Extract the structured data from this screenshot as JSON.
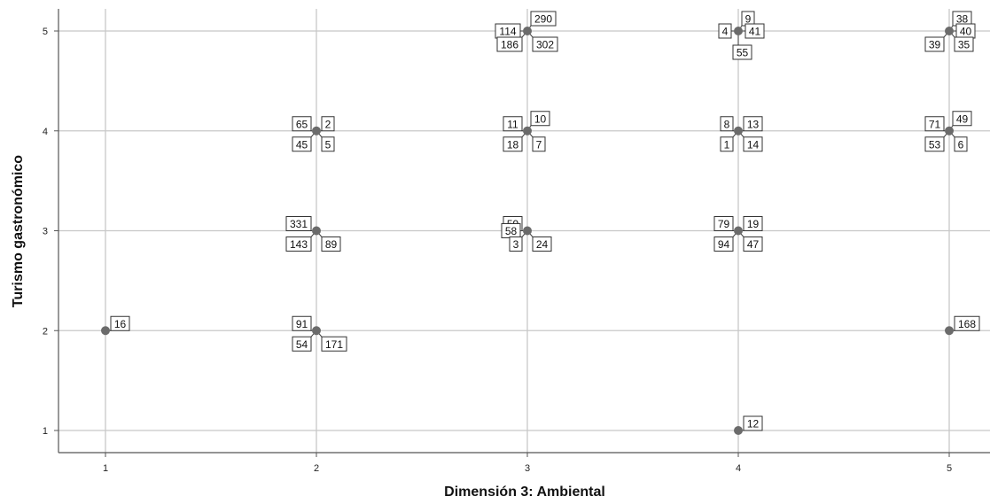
{
  "chart_data": {
    "type": "scatter",
    "xlabel": "Dimensión 3: Ambiental",
    "ylabel": "Turismo gastronómico",
    "xlim": [
      0.8,
      5.2
    ],
    "ylim": [
      0.8,
      5.2
    ],
    "xticks": [
      "1",
      "2",
      "3",
      "4",
      "5"
    ],
    "yticks": [
      "1",
      "2",
      "3",
      "4",
      "5"
    ],
    "grid": true,
    "point_color": "#6b6b6b",
    "points": [
      {
        "x": 1,
        "y": 2
      },
      {
        "x": 2,
        "y": 2
      },
      {
        "x": 2,
        "y": 3
      },
      {
        "x": 2,
        "y": 4
      },
      {
        "x": 3,
        "y": 3
      },
      {
        "x": 3,
        "y": 4
      },
      {
        "x": 3,
        "y": 5
      },
      {
        "x": 4,
        "y": 1
      },
      {
        "x": 4,
        "y": 3
      },
      {
        "x": 4,
        "y": 4
      },
      {
        "x": 4,
        "y": 5
      },
      {
        "x": 5,
        "y": 2
      },
      {
        "x": 5,
        "y": 4
      },
      {
        "x": 5,
        "y": 5
      }
    ],
    "case_labels": [
      {
        "x": 1,
        "y": 2,
        "text": "16",
        "pos": "ne"
      },
      {
        "x": 2,
        "y": 2,
        "text": "91",
        "pos": "nw"
      },
      {
        "x": 2,
        "y": 2,
        "text": "54",
        "pos": "sw"
      },
      {
        "x": 2,
        "y": 2,
        "text": "171",
        "pos": "se"
      },
      {
        "x": 2,
        "y": 3,
        "text": "331",
        "pos": "nw"
      },
      {
        "x": 2,
        "y": 3,
        "text": "143",
        "pos": "sw"
      },
      {
        "x": 2,
        "y": 3,
        "text": "89",
        "pos": "se"
      },
      {
        "x": 2,
        "y": 4,
        "text": "65",
        "pos": "nw"
      },
      {
        "x": 2,
        "y": 4,
        "text": "2",
        "pos": "ne"
      },
      {
        "x": 2,
        "y": 4,
        "text": "45",
        "pos": "sw"
      },
      {
        "x": 2,
        "y": 4,
        "text": "5",
        "pos": "se"
      },
      {
        "x": 3,
        "y": 3,
        "text": "59",
        "pos": "nw"
      },
      {
        "x": 3,
        "y": 3,
        "text": "58",
        "pos": "w"
      },
      {
        "x": 3,
        "y": 3,
        "text": "3",
        "pos": "sw"
      },
      {
        "x": 3,
        "y": 3,
        "text": "24",
        "pos": "se"
      },
      {
        "x": 3,
        "y": 4,
        "text": "11",
        "pos": "nw"
      },
      {
        "x": 3,
        "y": 4,
        "text": "10",
        "pos": "ne2"
      },
      {
        "x": 3,
        "y": 4,
        "text": "18",
        "pos": "sw"
      },
      {
        "x": 3,
        "y": 4,
        "text": "7",
        "pos": "se"
      },
      {
        "x": 3,
        "y": 5,
        "text": "114",
        "pos": "w"
      },
      {
        "x": 3,
        "y": 5,
        "text": "290",
        "pos": "ne2"
      },
      {
        "x": 3,
        "y": 5,
        "text": "186",
        "pos": "sw"
      },
      {
        "x": 3,
        "y": 5,
        "text": "302",
        "pos": "se"
      },
      {
        "x": 4,
        "y": 1,
        "text": "12",
        "pos": "ne"
      },
      {
        "x": 4,
        "y": 3,
        "text": "79",
        "pos": "nw"
      },
      {
        "x": 4,
        "y": 3,
        "text": "19",
        "pos": "ne"
      },
      {
        "x": 4,
        "y": 3,
        "text": "94",
        "pos": "sw"
      },
      {
        "x": 4,
        "y": 3,
        "text": "47",
        "pos": "se"
      },
      {
        "x": 4,
        "y": 4,
        "text": "8",
        "pos": "nw"
      },
      {
        "x": 4,
        "y": 4,
        "text": "13",
        "pos": "ne"
      },
      {
        "x": 4,
        "y": 4,
        "text": "1",
        "pos": "sw"
      },
      {
        "x": 4,
        "y": 4,
        "text": "14",
        "pos": "se"
      },
      {
        "x": 4,
        "y": 5,
        "text": "4",
        "pos": "w"
      },
      {
        "x": 4,
        "y": 5,
        "text": "9",
        "pos": "ne2"
      },
      {
        "x": 4,
        "y": 5,
        "text": "41",
        "pos": "e"
      },
      {
        "x": 4,
        "y": 5,
        "text": "55",
        "pos": "s"
      },
      {
        "x": 5,
        "y": 2,
        "text": "168",
        "pos": "ne"
      },
      {
        "x": 5,
        "y": 4,
        "text": "71",
        "pos": "nw"
      },
      {
        "x": 5,
        "y": 4,
        "text": "49",
        "pos": "ne2"
      },
      {
        "x": 5,
        "y": 4,
        "text": "53",
        "pos": "sw"
      },
      {
        "x": 5,
        "y": 4,
        "text": "6",
        "pos": "se"
      },
      {
        "x": 5,
        "y": 5,
        "text": "38",
        "pos": "ne2"
      },
      {
        "x": 5,
        "y": 5,
        "text": "40",
        "pos": "e"
      },
      {
        "x": 5,
        "y": 5,
        "text": "39",
        "pos": "sw"
      },
      {
        "x": 5,
        "y": 5,
        "text": "35",
        "pos": "se"
      }
    ]
  }
}
